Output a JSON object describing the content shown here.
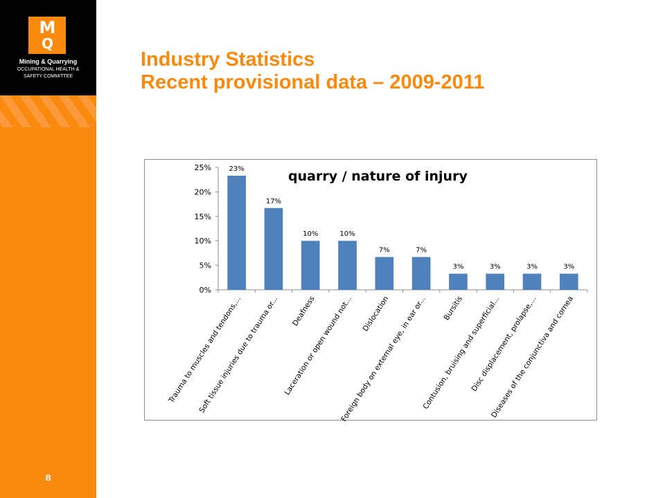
{
  "sidebar": {
    "logo_mark": "M",
    "logo_mark_sub": "Q",
    "logo_line1": "Mining & Quarrying",
    "logo_line2": "OCCUPATIONAL HEALTH &",
    "logo_line3": "SAFETY COMMITTEE",
    "page_number": "8"
  },
  "slide": {
    "title_line1": "Industry Statistics",
    "title_line2": "Recent provisional data – 2009-2011"
  },
  "colors": {
    "brand_orange": "#f98a0d",
    "bar_blue": "#4f81bd"
  },
  "chart_data": {
    "type": "bar",
    "title": "quarry / nature of injury",
    "categories": [
      "Trauma to muscles and tendons,...",
      "Soft tissue injuries due to trauma or...",
      "Deafness",
      "Laceration or open wound not...",
      "Dislocation",
      "Foreign body on external eye, in ear or...",
      "Bursitis",
      "Contusion, bruising and superficial...",
      "Disc displacement, prolapse,...",
      "Diseases of the conjunctiva and cornea"
    ],
    "values": [
      23.3,
      16.7,
      10,
      10,
      6.7,
      6.7,
      3.3,
      3.3,
      3.3,
      3.3
    ],
    "data_labels": [
      "23%",
      "17%",
      "10%",
      "10%",
      "7%",
      "7%",
      "3%",
      "3%",
      "3%",
      "3%"
    ],
    "y_ticks": [
      "0%",
      "5%",
      "10%",
      "15%",
      "20%",
      "25%"
    ],
    "ylim": [
      0,
      25
    ],
    "xlabel": "",
    "ylabel": "",
    "grid": false,
    "legend": "none"
  }
}
